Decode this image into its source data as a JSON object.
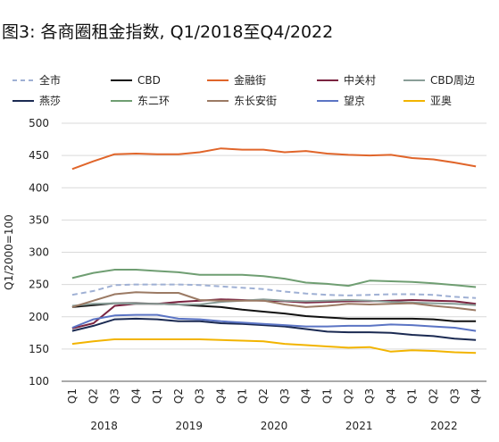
{
  "chart_data": {
    "type": "line",
    "title": "图3: 各商圈租金指数, Q1/2018至Q4/2022",
    "ylabel": "Q1/2000=100",
    "xlabel": "",
    "ylim": [
      100,
      500
    ],
    "yticks": [
      100,
      150,
      200,
      250,
      300,
      350,
      400,
      450,
      500
    ],
    "categories": [
      "Q1",
      "Q2",
      "Q3",
      "Q4",
      "Q1",
      "Q2",
      "Q3",
      "Q4",
      "Q1",
      "Q2",
      "Q3",
      "Q4",
      "Q1",
      "Q2",
      "Q3",
      "Q4",
      "Q1",
      "Q2",
      "Q3",
      "Q4"
    ],
    "years": [
      "2018",
      "2019",
      "2020",
      "2021",
      "2022"
    ],
    "grid": true,
    "legend_placement": "top",
    "series": [
      {
        "name": "全市",
        "color": "#9fb0d4",
        "dashed": true,
        "values": [
          234,
          240,
          249,
          250,
          250,
          250,
          249,
          247,
          245,
          243,
          239,
          236,
          234,
          233,
          234,
          235,
          235,
          234,
          231,
          229
        ]
      },
      {
        "name": "CBD",
        "color": "#111111",
        "dashed": false,
        "values": [
          215,
          218,
          221,
          221,
          220,
          219,
          217,
          215,
          211,
          208,
          205,
          201,
          199,
          197,
          197,
          197,
          197,
          196,
          193,
          193
        ]
      },
      {
        "name": "金融街",
        "color": "#e0652a",
        "dashed": false,
        "values": [
          429,
          441,
          452,
          453,
          452,
          452,
          455,
          461,
          459,
          459,
          455,
          457,
          453,
          451,
          450,
          451,
          446,
          444,
          439,
          433
        ]
      },
      {
        "name": "中关村",
        "color": "#7a2340",
        "dashed": false,
        "values": [
          182,
          190,
          217,
          220,
          220,
          223,
          225,
          227,
          226,
          225,
          224,
          222,
          223,
          224,
          224,
          225,
          226,
          225,
          224,
          220
        ]
      },
      {
        "name": "CBD周边",
        "color": "#8a9e98",
        "dashed": false,
        "values": [
          217,
          220,
          221,
          220,
          220,
          219,
          219,
          223,
          225,
          227,
          225,
          224,
          225,
          226,
          225,
          223,
          222,
          221,
          220,
          218
        ]
      },
      {
        "name": "燕莎",
        "color": "#1b2a52",
        "dashed": false,
        "values": [
          178,
          186,
          196,
          197,
          196,
          193,
          193,
          190,
          189,
          187,
          185,
          181,
          177,
          176,
          176,
          175,
          172,
          170,
          166,
          164
        ]
      },
      {
        "name": "东二环",
        "color": "#6f9e72",
        "dashed": false,
        "values": [
          260,
          268,
          273,
          273,
          271,
          269,
          265,
          265,
          265,
          263,
          259,
          253,
          251,
          248,
          256,
          255,
          254,
          252,
          249,
          246
        ]
      },
      {
        "name": "东长安街",
        "color": "#9b7a64",
        "dashed": false,
        "values": [
          215,
          225,
          235,
          238,
          237,
          237,
          226,
          225,
          225,
          225,
          219,
          215,
          217,
          220,
          219,
          220,
          221,
          217,
          214,
          210
        ]
      },
      {
        "name": "望京",
        "color": "#5b74c4",
        "dashed": false,
        "values": [
          183,
          196,
          202,
          203,
          203,
          197,
          196,
          193,
          191,
          189,
          187,
          185,
          185,
          186,
          186,
          188,
          187,
          185,
          183,
          178
        ]
      },
      {
        "name": "亚奥",
        "color": "#f2b400",
        "dashed": false,
        "values": [
          158,
          162,
          165,
          165,
          165,
          165,
          165,
          164,
          163,
          162,
          158,
          156,
          154,
          152,
          153,
          146,
          148,
          147,
          145,
          144
        ]
      }
    ]
  }
}
